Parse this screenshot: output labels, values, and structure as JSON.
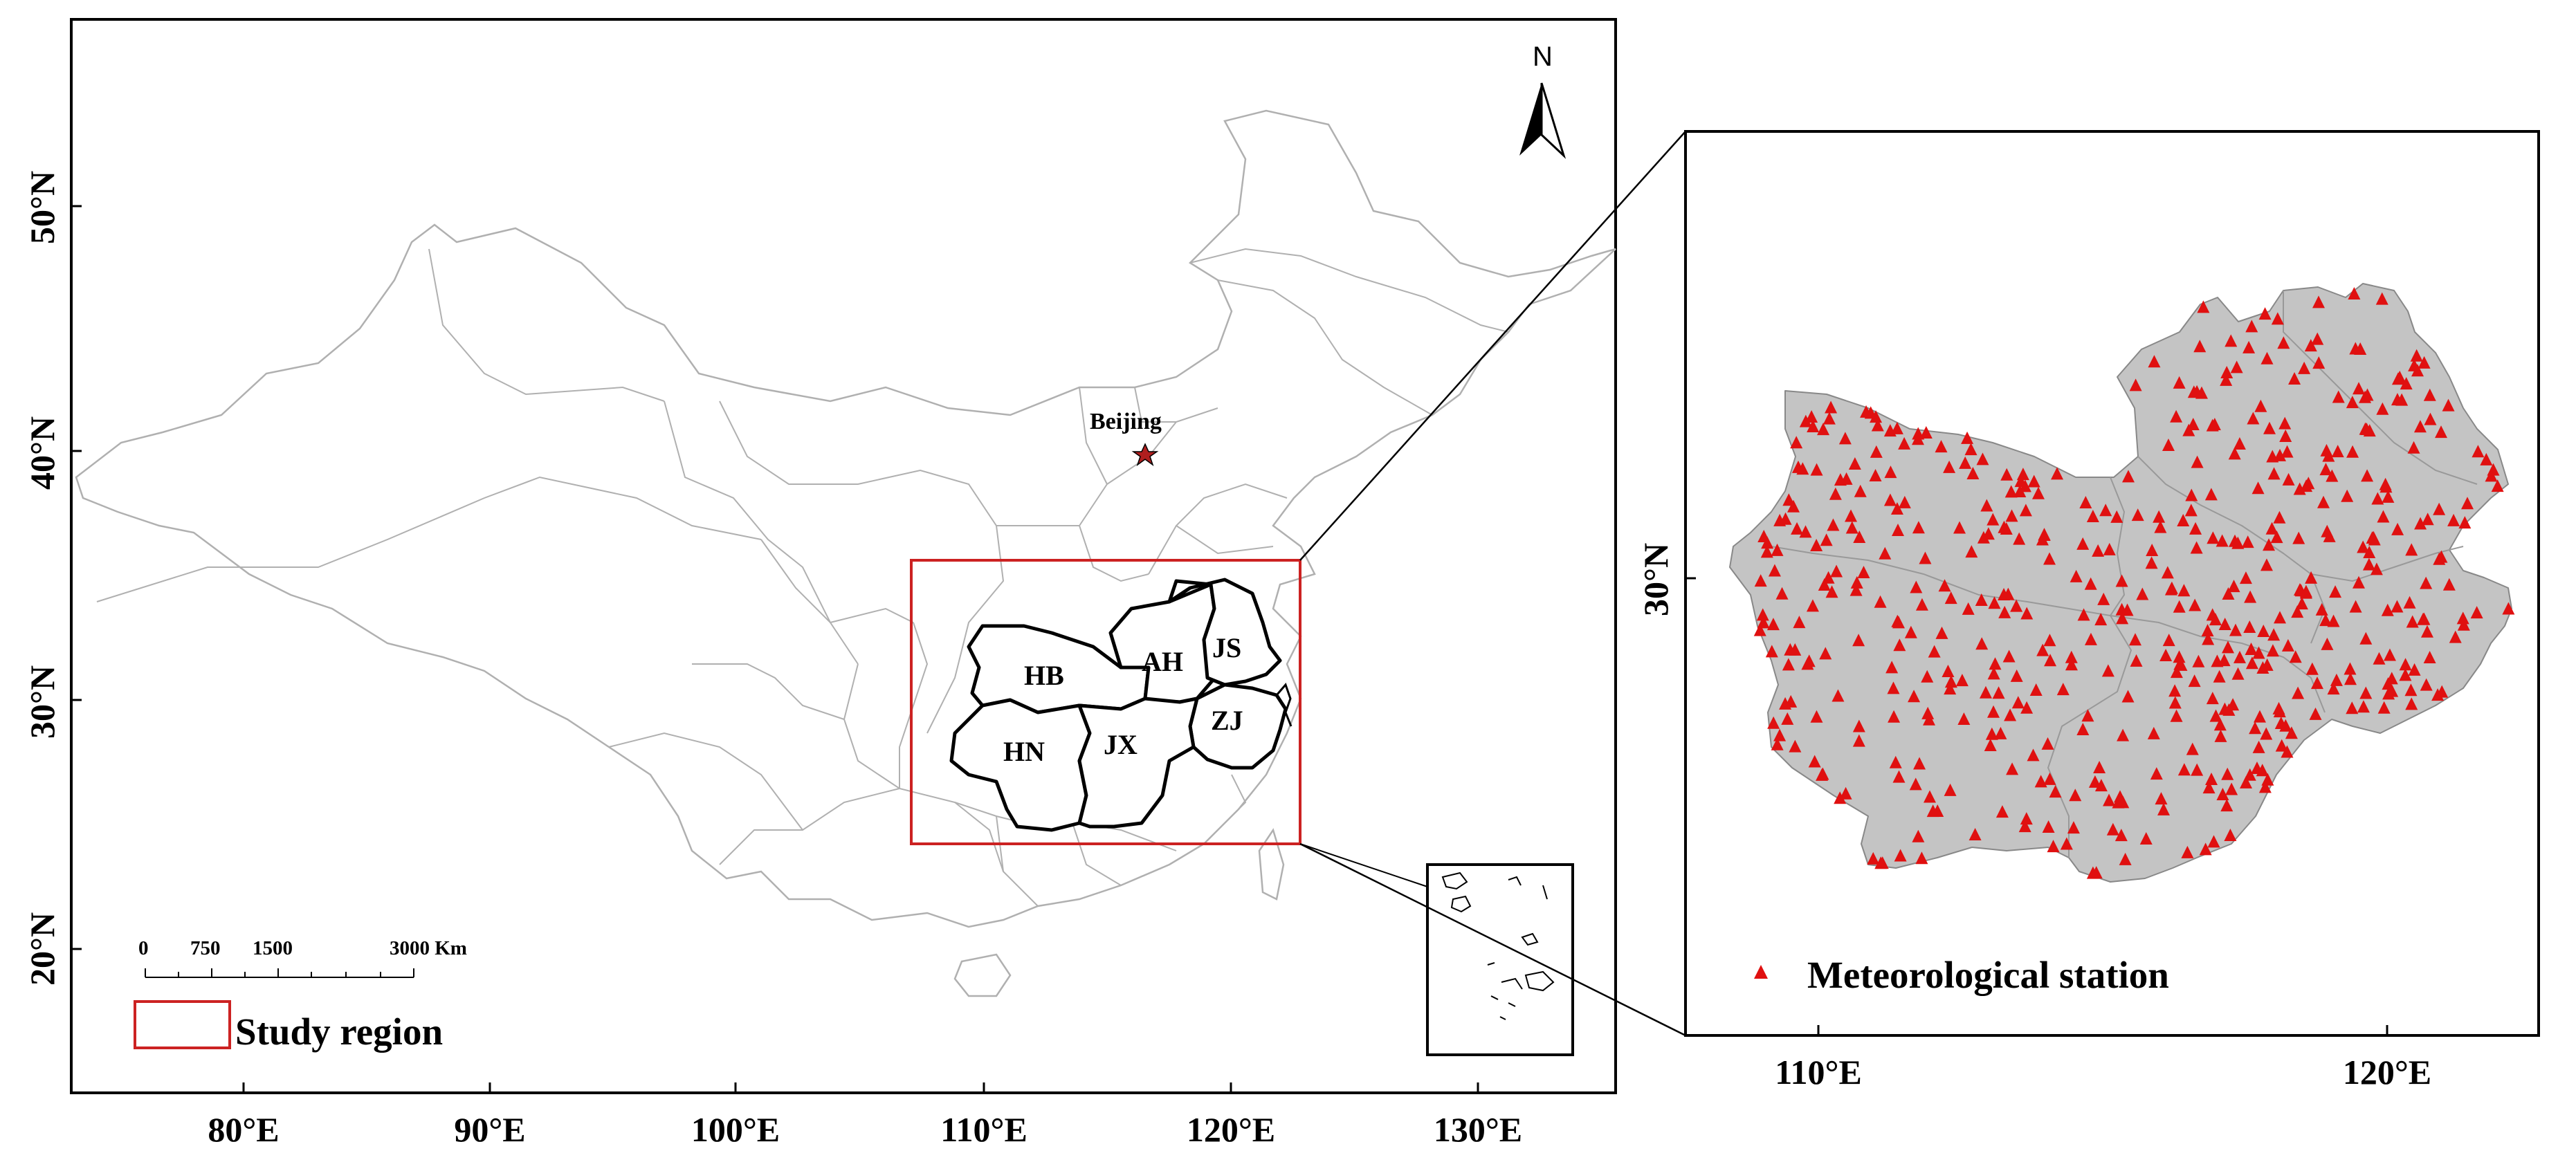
{
  "main_map": {
    "lat_ticks": [
      "50°N",
      "40°N",
      "30°N",
      "20°N"
    ],
    "lon_ticks": [
      "80°E",
      "90°E",
      "100°E",
      "110°E",
      "120°E",
      "130°E"
    ],
    "north_label": "N",
    "capital": "Beijing",
    "provinces": [
      "HB",
      "AH",
      "JS",
      "ZJ",
      "HN",
      "JX"
    ],
    "scale_bar": {
      "labels": [
        "0",
        "750",
        "1500",
        "3000 Km"
      ]
    },
    "legend": {
      "study_region": "Study region"
    }
  },
  "inset_map": {
    "lat_tick": "30°N",
    "lon_ticks": [
      "110°E",
      "120°E"
    ],
    "legend": {
      "station": "Meteorological station"
    }
  },
  "colors": {
    "boundary": "#b0b0b0",
    "region_fill": "#c4c4c4",
    "station": "#e01010",
    "study_box": "#cc2222",
    "capital_star": "#b01e1e"
  }
}
